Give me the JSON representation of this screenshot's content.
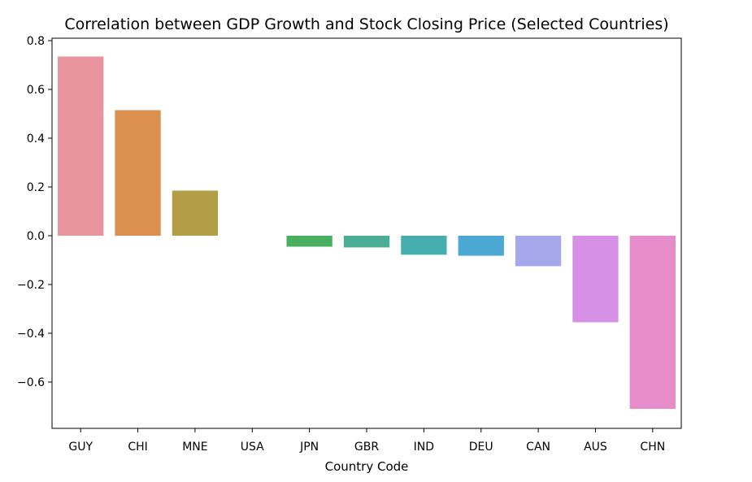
{
  "chart_data": {
    "type": "bar",
    "title": "Correlation between GDP Growth and Stock Closing Price (Selected Countries)",
    "xlabel": "Country Code",
    "ylabel": "",
    "categories": [
      "GUY",
      "CHI",
      "MNE",
      "USA",
      "JPN",
      "GBR",
      "IND",
      "DEU",
      "CAN",
      "AUS",
      "CHN"
    ],
    "values": [
      0.735,
      0.515,
      0.185,
      0.0,
      -0.045,
      -0.048,
      -0.078,
      -0.082,
      -0.125,
      -0.355,
      -0.71
    ],
    "colors": [
      "#e8959f",
      "#dc9050",
      "#b39d46",
      "#8fa845",
      "#48b060",
      "#4aad96",
      "#47aeb0",
      "#4aa8d3",
      "#a5a9ec",
      "#d691e6",
      "#e68cc8"
    ],
    "ylim": [
      -0.79,
      0.81
    ],
    "yticks": [
      0.8,
      0.6,
      0.4,
      0.2,
      0.0,
      -0.2,
      -0.4,
      -0.6
    ],
    "ytick_labels": [
      "0.8",
      "0.6",
      "0.4",
      "0.2",
      "0.0",
      "−0.2",
      "−0.4",
      "−0.6"
    ],
    "grid": false,
    "legend": "none"
  }
}
